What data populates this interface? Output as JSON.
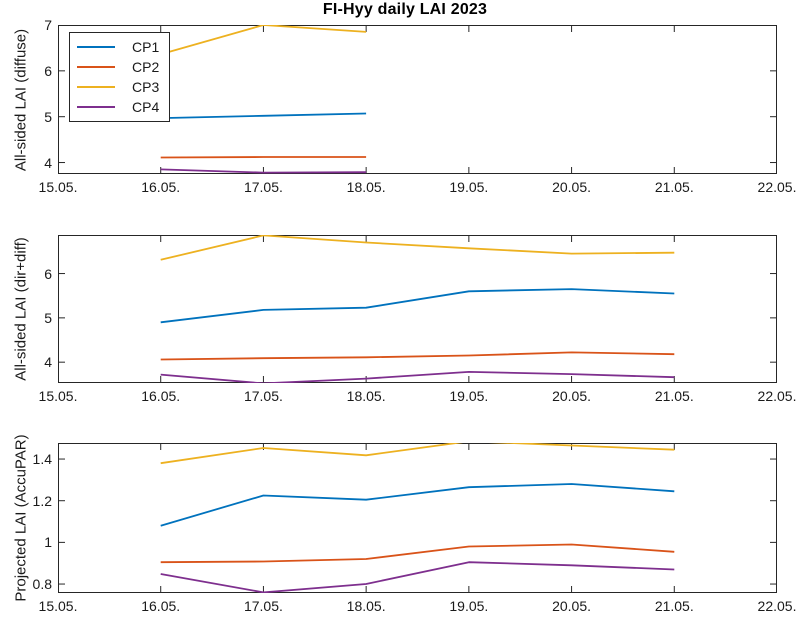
{
  "title": "FI-Hyy daily LAI 2023",
  "axis_color": "#262626",
  "legend": {
    "position": "top-left-inside-first-panel",
    "items": [
      {
        "label": "CP1",
        "color": "#0072BD"
      },
      {
        "label": "CP2",
        "color": "#D95319"
      },
      {
        "label": "CP3",
        "color": "#EDB120"
      },
      {
        "label": "CP4",
        "color": "#7E2F8E"
      }
    ]
  },
  "chart_data": [
    {
      "type": "line",
      "panel": "top",
      "ylabel": "All-sided LAI (diffuse)",
      "x": [
        16,
        17,
        18
      ],
      "xlim": [
        15,
        22
      ],
      "xtick_values": [
        15,
        16,
        17,
        18,
        19,
        20,
        21,
        22
      ],
      "xtick_labels": [
        "15.05.",
        "16.05.",
        "17.05.",
        "18.05.",
        "19.05.",
        "20.05.",
        "21.05.",
        "22.05."
      ],
      "ylim": [
        3.75,
        7.0
      ],
      "ytick_values": [
        4,
        5,
        6,
        7
      ],
      "ytick_labels": [
        "4",
        "5",
        "6",
        "7"
      ],
      "grid": false,
      "series": [
        {
          "name": "CP1",
          "color": "#0072BD",
          "values": [
            4.97,
            5.02,
            5.07
          ]
        },
        {
          "name": "CP2",
          "color": "#D95319",
          "values": [
            4.11,
            4.12,
            4.12
          ]
        },
        {
          "name": "CP3",
          "color": "#EDB120",
          "values": [
            6.36,
            7.0,
            6.85
          ]
        },
        {
          "name": "CP4",
          "color": "#7E2F8E",
          "values": [
            3.85,
            3.78,
            3.79
          ]
        }
      ]
    },
    {
      "type": "line",
      "panel": "middle",
      "ylabel": "All-sided LAI (dir+diff)",
      "x": [
        16,
        17,
        18,
        19,
        20,
        21
      ],
      "xlim": [
        15,
        22
      ],
      "xtick_values": [
        15,
        16,
        17,
        18,
        19,
        20,
        21,
        22
      ],
      "xtick_labels": [
        "15.05.",
        "16.05.",
        "17.05.",
        "18.05.",
        "19.05.",
        "20.05.",
        "21.05.",
        "22.05."
      ],
      "ylim": [
        3.53,
        6.87
      ],
      "ytick_values": [
        4,
        5,
        6
      ],
      "ytick_labels": [
        "4",
        "5",
        "6"
      ],
      "grid": false,
      "series": [
        {
          "name": "CP1",
          "color": "#0072BD",
          "values": [
            4.9,
            5.18,
            5.23,
            5.6,
            5.65,
            5.55
          ]
        },
        {
          "name": "CP2",
          "color": "#D95319",
          "values": [
            4.06,
            4.09,
            4.11,
            4.15,
            4.22,
            4.18
          ]
        },
        {
          "name": "CP3",
          "color": "#EDB120",
          "values": [
            6.31,
            6.86,
            6.7,
            6.57,
            6.45,
            6.47
          ]
        },
        {
          "name": "CP4",
          "color": "#7E2F8E",
          "values": [
            3.72,
            3.52,
            3.63,
            3.78,
            3.73,
            3.66
          ]
        }
      ]
    },
    {
      "type": "line",
      "panel": "bottom",
      "ylabel": "Projected LAI (AccuPAR)",
      "x": [
        16,
        17,
        18,
        19,
        20,
        21
      ],
      "xlim": [
        15,
        22
      ],
      "xtick_values": [
        15,
        16,
        17,
        18,
        19,
        20,
        21,
        22
      ],
      "xtick_labels": [
        "15.05.",
        "16.05.",
        "17.05.",
        "18.05.",
        "19.05.",
        "20.05.",
        "21.05.",
        "22.05."
      ],
      "ylim": [
        0.757,
        1.477
      ],
      "ytick_values": [
        0.8,
        1,
        1.2,
        1.4
      ],
      "ytick_labels": [
        "0.8",
        "1",
        "1.2",
        "1.4"
      ],
      "grid": false,
      "series": [
        {
          "name": "CP1",
          "color": "#0072BD",
          "values": [
            1.08,
            1.225,
            1.205,
            1.265,
            1.28,
            1.245
          ]
        },
        {
          "name": "CP2",
          "color": "#D95319",
          "values": [
            0.905,
            0.908,
            0.92,
            0.98,
            0.99,
            0.955
          ]
        },
        {
          "name": "CP3",
          "color": "#EDB120",
          "values": [
            1.38,
            1.453,
            1.418,
            1.485,
            1.465,
            1.445
          ]
        },
        {
          "name": "CP4",
          "color": "#7E2F8E",
          "values": [
            0.848,
            0.76,
            0.8,
            0.905,
            0.89,
            0.87
          ]
        }
      ]
    }
  ]
}
